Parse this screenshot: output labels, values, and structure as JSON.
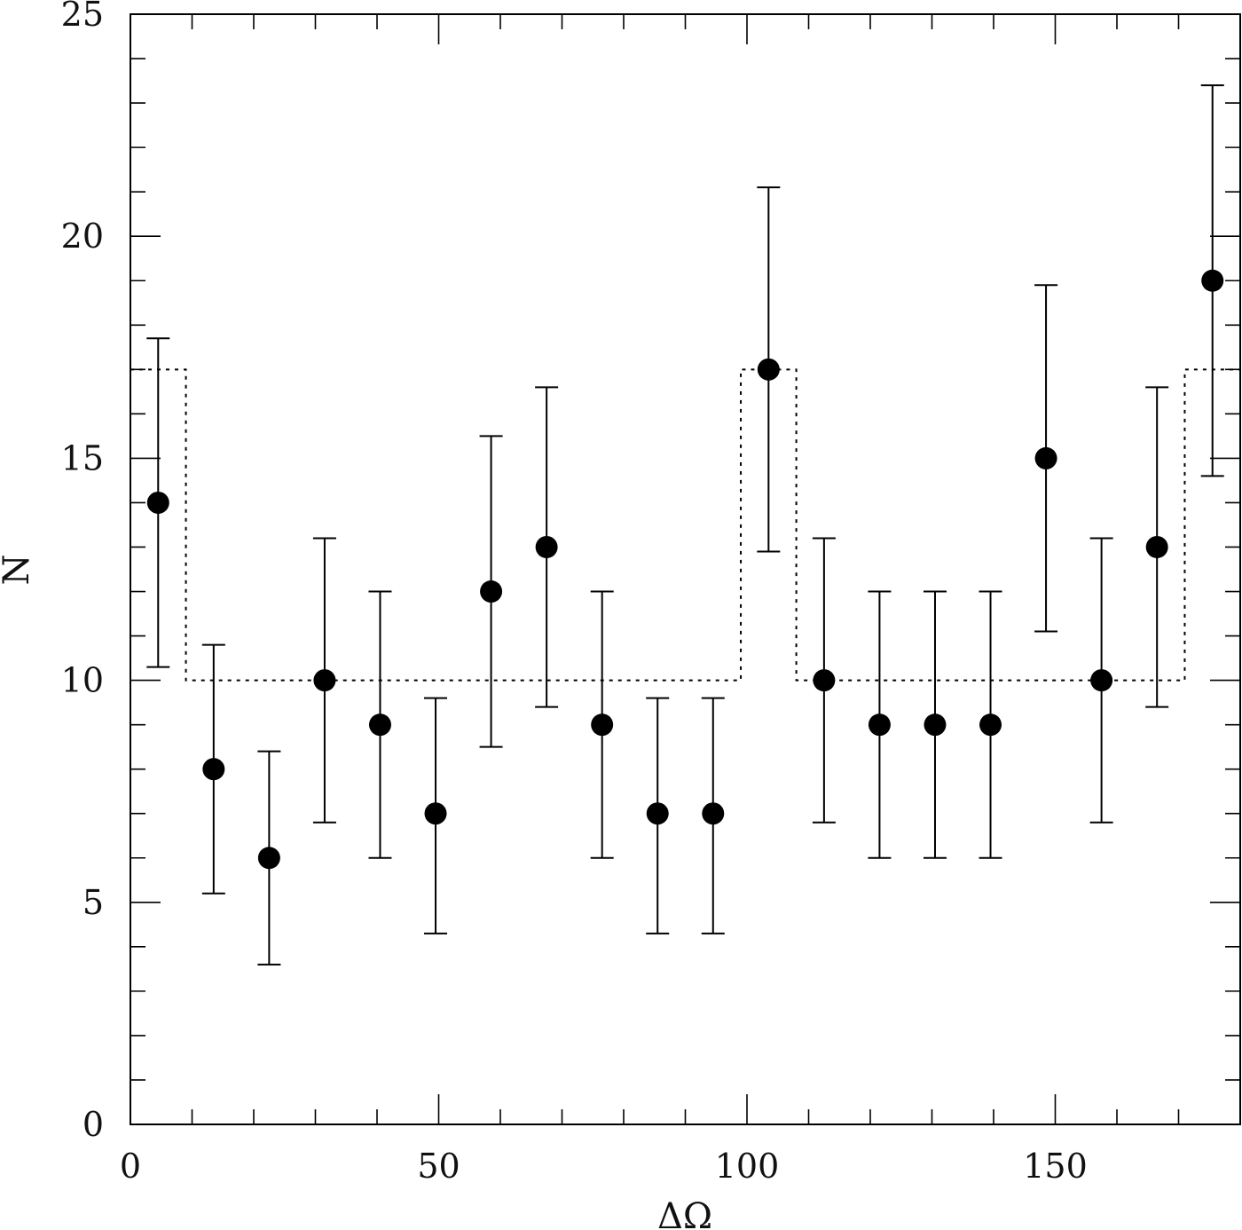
{
  "chart_data": {
    "type": "scatter",
    "xlabel": "ΔΩ",
    "ylabel": "N",
    "xlim": [
      0,
      180
    ],
    "ylim": [
      0,
      25
    ],
    "x_major_ticks": [
      0,
      50,
      100,
      150
    ],
    "x_minor_step": 10,
    "y_major_ticks": [
      0,
      5,
      10,
      15,
      20,
      25
    ],
    "y_minor_step": 1,
    "grid": false,
    "series": [
      {
        "style": "filled-circles-with-error-bars",
        "points": [
          {
            "x": 4.5,
            "y": 14,
            "ylow": 10.3,
            "yhigh": 17.7
          },
          {
            "x": 13.5,
            "y": 8,
            "ylow": 5.2,
            "yhigh": 10.8
          },
          {
            "x": 22.5,
            "y": 6,
            "ylow": 3.6,
            "yhigh": 8.4
          },
          {
            "x": 31.5,
            "y": 10,
            "ylow": 6.8,
            "yhigh": 13.2
          },
          {
            "x": 40.5,
            "y": 9,
            "ylow": 6.0,
            "yhigh": 12.0
          },
          {
            "x": 49.5,
            "y": 7,
            "ylow": 4.3,
            "yhigh": 9.6
          },
          {
            "x": 58.5,
            "y": 12,
            "ylow": 8.5,
            "yhigh": 15.5
          },
          {
            "x": 67.5,
            "y": 13,
            "ylow": 9.4,
            "yhigh": 16.6
          },
          {
            "x": 76.5,
            "y": 9,
            "ylow": 6.0,
            "yhigh": 12.0
          },
          {
            "x": 85.5,
            "y": 7,
            "ylow": 4.3,
            "yhigh": 9.6
          },
          {
            "x": 94.5,
            "y": 7,
            "ylow": 4.3,
            "yhigh": 9.6
          },
          {
            "x": 103.5,
            "y": 17,
            "ylow": 12.9,
            "yhigh": 21.1
          },
          {
            "x": 112.5,
            "y": 10,
            "ylow": 6.8,
            "yhigh": 13.2
          },
          {
            "x": 121.5,
            "y": 9,
            "ylow": 6.0,
            "yhigh": 12.0
          },
          {
            "x": 130.5,
            "y": 9,
            "ylow": 6.0,
            "yhigh": 12.0
          },
          {
            "x": 139.5,
            "y": 9,
            "ylow": 6.0,
            "yhigh": 12.0
          },
          {
            "x": 148.5,
            "y": 15,
            "ylow": 11.1,
            "yhigh": 18.9
          },
          {
            "x": 157.5,
            "y": 10,
            "ylow": 6.8,
            "yhigh": 13.2
          },
          {
            "x": 166.5,
            "y": 13,
            "ylow": 9.4,
            "yhigh": 16.6
          },
          {
            "x": 175.5,
            "y": 19,
            "ylow": 14.6,
            "yhigh": 23.4
          }
        ]
      },
      {
        "style": "dotted-step",
        "steps": [
          {
            "x0": 0,
            "x1": 9,
            "y": 17
          },
          {
            "x0": 9,
            "x1": 99,
            "y": 10
          },
          {
            "x0": 99,
            "x1": 108,
            "y": 17
          },
          {
            "x0": 108,
            "x1": 171,
            "y": 10
          },
          {
            "x0": 171,
            "x1": 180,
            "y": 17
          }
        ]
      }
    ]
  }
}
